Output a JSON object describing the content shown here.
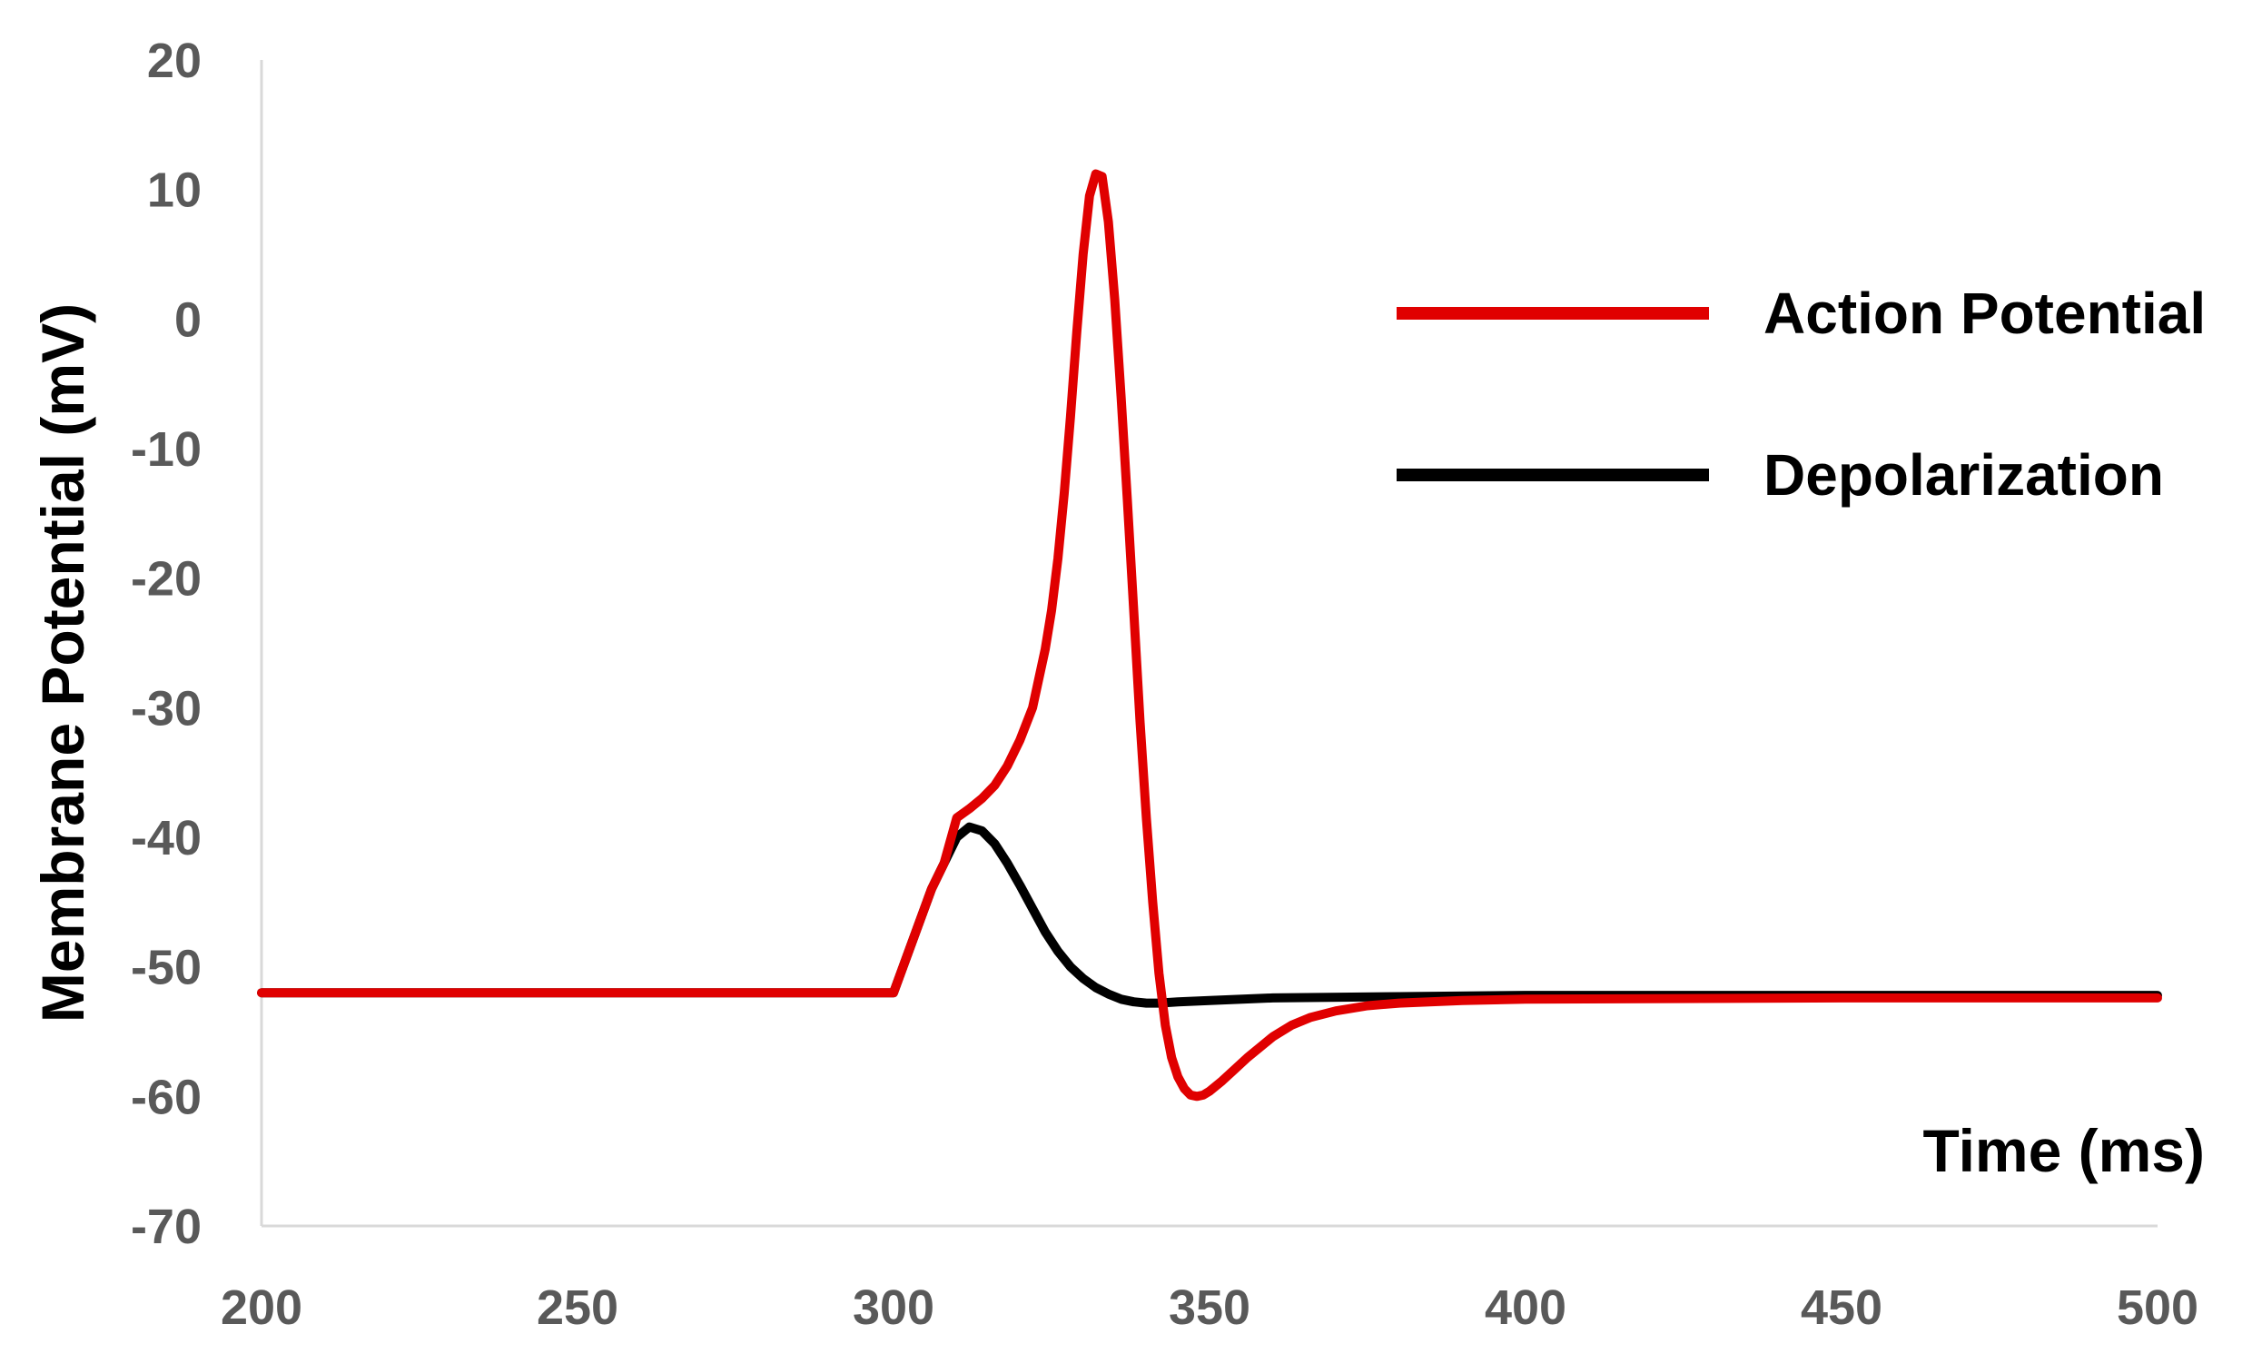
{
  "chart_data": {
    "type": "line",
    "title": "",
    "xlabel": "Time (ms)",
    "ylabel": "Membrane Potential (mV)",
    "xlim": [
      200,
      500
    ],
    "ylim": [
      -70,
      20
    ],
    "xticks": [
      200,
      250,
      300,
      350,
      400,
      450,
      500
    ],
    "yticks": [
      20,
      10,
      0,
      -10,
      -20,
      -30,
      -40,
      -50,
      -60,
      -70
    ],
    "grid": false,
    "legend_position": "right",
    "series": [
      {
        "name": "Depolarization",
        "color": "#000000",
        "x": [
          200,
          300,
          303,
          306,
          308,
          310,
          312,
          314,
          316,
          318,
          320,
          322,
          324,
          326,
          328,
          330,
          332,
          334,
          336,
          338,
          340,
          342,
          345,
          350,
          360,
          380,
          400,
          450,
          500
        ],
        "y": [
          -52,
          -52,
          -48,
          -44,
          -42,
          -40,
          -39.2,
          -39.5,
          -40.5,
          -42,
          -43.7,
          -45.5,
          -47.3,
          -48.8,
          -50,
          -50.9,
          -51.6,
          -52.1,
          -52.5,
          -52.7,
          -52.8,
          -52.8,
          -52.7,
          -52.6,
          -52.4,
          -52.3,
          -52.2,
          -52.2,
          -52.2
        ]
      },
      {
        "name": "Action Potential",
        "color": "#e00000",
        "x": [
          200,
          300,
          303,
          306,
          308,
          310,
          312,
          314,
          316,
          318,
          320,
          322,
          324,
          325,
          326,
          327,
          328,
          329,
          330,
          331,
          332,
          333,
          334,
          335,
          336,
          337,
          338,
          339,
          340,
          341,
          342,
          343,
          344,
          345,
          346,
          347,
          348,
          349,
          350,
          352,
          354,
          356,
          358,
          360,
          363,
          366,
          370,
          375,
          380,
          390,
          400,
          450,
          500
        ],
        "y": [
          -52,
          -52,
          -48,
          -44,
          -42,
          -38.5,
          -37.8,
          -37,
          -36,
          -34.5,
          -32.5,
          -30,
          -25.5,
          -22.5,
          -18.5,
          -13.5,
          -7.5,
          -1,
          5,
          9.5,
          11.2,
          11,
          7.5,
          1.5,
          -6,
          -14,
          -22.5,
          -31,
          -38.5,
          -45,
          -50.5,
          -54.5,
          -57,
          -58.5,
          -59.4,
          -59.9,
          -60,
          -59.9,
          -59.6,
          -58.8,
          -57.9,
          -57,
          -56.2,
          -55.4,
          -54.5,
          -53.9,
          -53.4,
          -53,
          -52.8,
          -52.6,
          -52.5,
          -52.4,
          -52.4
        ]
      }
    ],
    "legend": [
      {
        "label": "Action Potential",
        "color": "#e00000"
      },
      {
        "label": "Depolarization",
        "color": "#000000"
      }
    ]
  }
}
